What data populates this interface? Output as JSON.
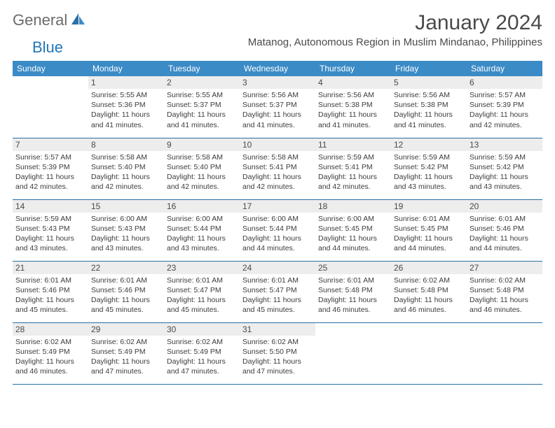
{
  "logo": {
    "part1": "General",
    "part2": "Blue"
  },
  "title": "January 2024",
  "location": "Matanog, Autonomous Region in Muslim Mindanao, Philippines",
  "colors": {
    "header_bg": "#3b8bc6",
    "header_text": "#ffffff",
    "rule": "#2a6fa5",
    "daynum_bg": "#ededed",
    "body_text": "#3c3c3c",
    "logo_grey": "#6b6b6b",
    "logo_blue": "#2177b8"
  },
  "weekdays": [
    "Sunday",
    "Monday",
    "Tuesday",
    "Wednesday",
    "Thursday",
    "Friday",
    "Saturday"
  ],
  "weeks": [
    [
      null,
      {
        "d": "1",
        "sr": "5:55 AM",
        "ss": "5:36 PM",
        "dl": "11 hours and 41 minutes."
      },
      {
        "d": "2",
        "sr": "5:55 AM",
        "ss": "5:37 PM",
        "dl": "11 hours and 41 minutes."
      },
      {
        "d": "3",
        "sr": "5:56 AM",
        "ss": "5:37 PM",
        "dl": "11 hours and 41 minutes."
      },
      {
        "d": "4",
        "sr": "5:56 AM",
        "ss": "5:38 PM",
        "dl": "11 hours and 41 minutes."
      },
      {
        "d": "5",
        "sr": "5:56 AM",
        "ss": "5:38 PM",
        "dl": "11 hours and 41 minutes."
      },
      {
        "d": "6",
        "sr": "5:57 AM",
        "ss": "5:39 PM",
        "dl": "11 hours and 42 minutes."
      }
    ],
    [
      {
        "d": "7",
        "sr": "5:57 AM",
        "ss": "5:39 PM",
        "dl": "11 hours and 42 minutes."
      },
      {
        "d": "8",
        "sr": "5:58 AM",
        "ss": "5:40 PM",
        "dl": "11 hours and 42 minutes."
      },
      {
        "d": "9",
        "sr": "5:58 AM",
        "ss": "5:40 PM",
        "dl": "11 hours and 42 minutes."
      },
      {
        "d": "10",
        "sr": "5:58 AM",
        "ss": "5:41 PM",
        "dl": "11 hours and 42 minutes."
      },
      {
        "d": "11",
        "sr": "5:59 AM",
        "ss": "5:41 PM",
        "dl": "11 hours and 42 minutes."
      },
      {
        "d": "12",
        "sr": "5:59 AM",
        "ss": "5:42 PM",
        "dl": "11 hours and 43 minutes."
      },
      {
        "d": "13",
        "sr": "5:59 AM",
        "ss": "5:42 PM",
        "dl": "11 hours and 43 minutes."
      }
    ],
    [
      {
        "d": "14",
        "sr": "5:59 AM",
        "ss": "5:43 PM",
        "dl": "11 hours and 43 minutes."
      },
      {
        "d": "15",
        "sr": "6:00 AM",
        "ss": "5:43 PM",
        "dl": "11 hours and 43 minutes."
      },
      {
        "d": "16",
        "sr": "6:00 AM",
        "ss": "5:44 PM",
        "dl": "11 hours and 43 minutes."
      },
      {
        "d": "17",
        "sr": "6:00 AM",
        "ss": "5:44 PM",
        "dl": "11 hours and 44 minutes."
      },
      {
        "d": "18",
        "sr": "6:00 AM",
        "ss": "5:45 PM",
        "dl": "11 hours and 44 minutes."
      },
      {
        "d": "19",
        "sr": "6:01 AM",
        "ss": "5:45 PM",
        "dl": "11 hours and 44 minutes."
      },
      {
        "d": "20",
        "sr": "6:01 AM",
        "ss": "5:46 PM",
        "dl": "11 hours and 44 minutes."
      }
    ],
    [
      {
        "d": "21",
        "sr": "6:01 AM",
        "ss": "5:46 PM",
        "dl": "11 hours and 45 minutes."
      },
      {
        "d": "22",
        "sr": "6:01 AM",
        "ss": "5:46 PM",
        "dl": "11 hours and 45 minutes."
      },
      {
        "d": "23",
        "sr": "6:01 AM",
        "ss": "5:47 PM",
        "dl": "11 hours and 45 minutes."
      },
      {
        "d": "24",
        "sr": "6:01 AM",
        "ss": "5:47 PM",
        "dl": "11 hours and 45 minutes."
      },
      {
        "d": "25",
        "sr": "6:01 AM",
        "ss": "5:48 PM",
        "dl": "11 hours and 46 minutes."
      },
      {
        "d": "26",
        "sr": "6:02 AM",
        "ss": "5:48 PM",
        "dl": "11 hours and 46 minutes."
      },
      {
        "d": "27",
        "sr": "6:02 AM",
        "ss": "5:48 PM",
        "dl": "11 hours and 46 minutes."
      }
    ],
    [
      {
        "d": "28",
        "sr": "6:02 AM",
        "ss": "5:49 PM",
        "dl": "11 hours and 46 minutes."
      },
      {
        "d": "29",
        "sr": "6:02 AM",
        "ss": "5:49 PM",
        "dl": "11 hours and 47 minutes."
      },
      {
        "d": "30",
        "sr": "6:02 AM",
        "ss": "5:49 PM",
        "dl": "11 hours and 47 minutes."
      },
      {
        "d": "31",
        "sr": "6:02 AM",
        "ss": "5:50 PM",
        "dl": "11 hours and 47 minutes."
      },
      null,
      null,
      null
    ]
  ],
  "labels": {
    "sunrise": "Sunrise:",
    "sunset": "Sunset:",
    "daylight": "Daylight:"
  }
}
